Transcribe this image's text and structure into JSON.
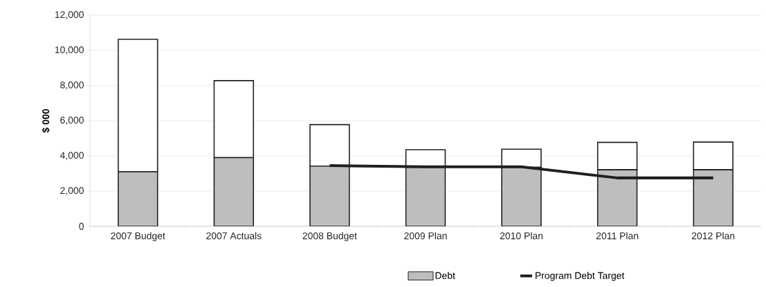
{
  "chart_data": {
    "type": "bar",
    "ylabel": "$ 000",
    "categories": [
      "2007 Budget",
      "2007 Actuals",
      "2008 Budget",
      "2009 Plan",
      "2010 Plan",
      "2011 Plan",
      "2012 Plan"
    ],
    "series": [
      {
        "name": "Debt",
        "color": "#bdbec0",
        "values": [
          3100,
          3900,
          3420,
          3350,
          3350,
          3210,
          3210
        ]
      },
      {
        "color": "#ffffff",
        "values": [
          7530,
          4380,
          2360,
          1000,
          1030,
          1560,
          1580
        ]
      },
      {
        "name": "Program Debt Target",
        "type": "line",
        "color": "#231f20",
        "values": [
          null,
          null,
          3450,
          3380,
          3380,
          2750,
          2750
        ]
      }
    ],
    "stacked": true,
    "ylim": [
      0,
      12000
    ],
    "yticks": [
      {
        "value": 0,
        "label": "0"
      },
      {
        "value": 2000,
        "label": "2,000"
      },
      {
        "value": 4000,
        "label": "4,000"
      },
      {
        "value": 6000,
        "label": "6,000"
      },
      {
        "value": 8000,
        "label": "8,000"
      },
      {
        "value": 10000,
        "label": "10,000"
      },
      {
        "value": 12000,
        "label": "12,000"
      }
    ],
    "grid": "y",
    "legend": "bottom"
  }
}
